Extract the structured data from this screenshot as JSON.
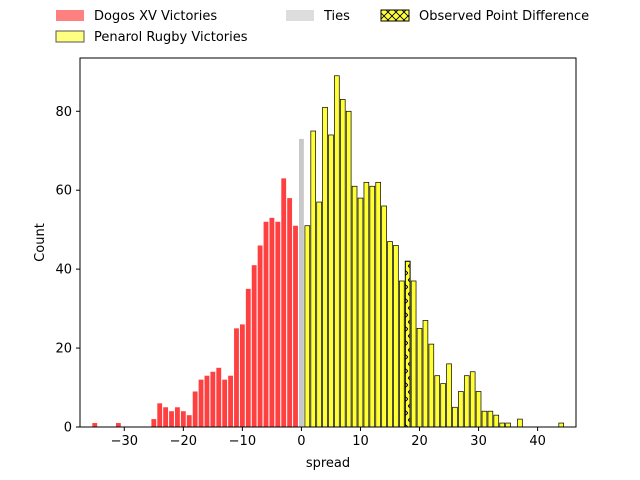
{
  "chart_data": {
    "type": "bar",
    "xlabel": "spread",
    "ylabel": "Count",
    "xlim": [
      -37.5,
      46.5
    ],
    "ylim": [
      0,
      93.5
    ],
    "x_ticks": [
      -30,
      -20,
      -10,
      0,
      10,
      20,
      30,
      40
    ],
    "y_ticks": [
      0,
      20,
      40,
      60,
      80
    ],
    "grid": false,
    "legend_placement": "top, above plot",
    "legend": [
      {
        "label": "Dogos XV Victories",
        "color": "#ff8080",
        "style": "solid"
      },
      {
        "label": "Penarol Rugby Victories",
        "color": "#ffff80",
        "style": "outlined"
      },
      {
        "label": "Ties",
        "color": "#dddddd",
        "style": "solid"
      },
      {
        "label": "Observed Point Difference",
        "color": "#ffff40",
        "style": "hatched"
      }
    ],
    "series": [
      {
        "name": "Dogos XV Victories",
        "color": "#ff4040",
        "x": [
          -35,
          -31,
          -25,
          -24,
          -23,
          -22,
          -21,
          -20,
          -19,
          -18,
          -17,
          -16,
          -15,
          -14,
          -13,
          -12,
          -11,
          -10,
          -9,
          -8,
          -7,
          -6,
          -5,
          -4,
          -3,
          -2,
          -1
        ],
        "values": [
          1,
          1,
          2,
          6,
          5,
          4,
          5,
          4,
          3,
          9,
          12,
          13,
          14,
          15,
          12,
          13,
          25,
          26,
          35,
          41,
          46,
          52,
          53,
          52,
          63,
          58,
          51
        ]
      },
      {
        "name": "Ties",
        "color": "#c8c8c8",
        "x": [
          0
        ],
        "values": [
          73
        ]
      },
      {
        "name": "Penarol Rugby Victories",
        "color": "#ffff33",
        "x": [
          1,
          2,
          3,
          4,
          5,
          6,
          7,
          8,
          9,
          10,
          11,
          12,
          13,
          14,
          15,
          16,
          17,
          18,
          19,
          20,
          21,
          22,
          23,
          24,
          25,
          26,
          27,
          28,
          29,
          30,
          31,
          32,
          33,
          34,
          35,
          37,
          44
        ],
        "values": [
          51,
          75,
          57,
          81,
          74,
          89,
          83,
          80,
          61,
          58,
          62,
          61,
          62,
          56,
          47,
          46,
          37,
          42,
          37,
          25,
          27,
          21,
          13,
          11,
          16,
          5,
          9,
          13,
          14,
          9,
          4,
          4,
          3,
          1,
          1,
          2,
          1
        ]
      }
    ],
    "observed_point_difference": {
      "x": 18,
      "y_top": 42
    }
  }
}
